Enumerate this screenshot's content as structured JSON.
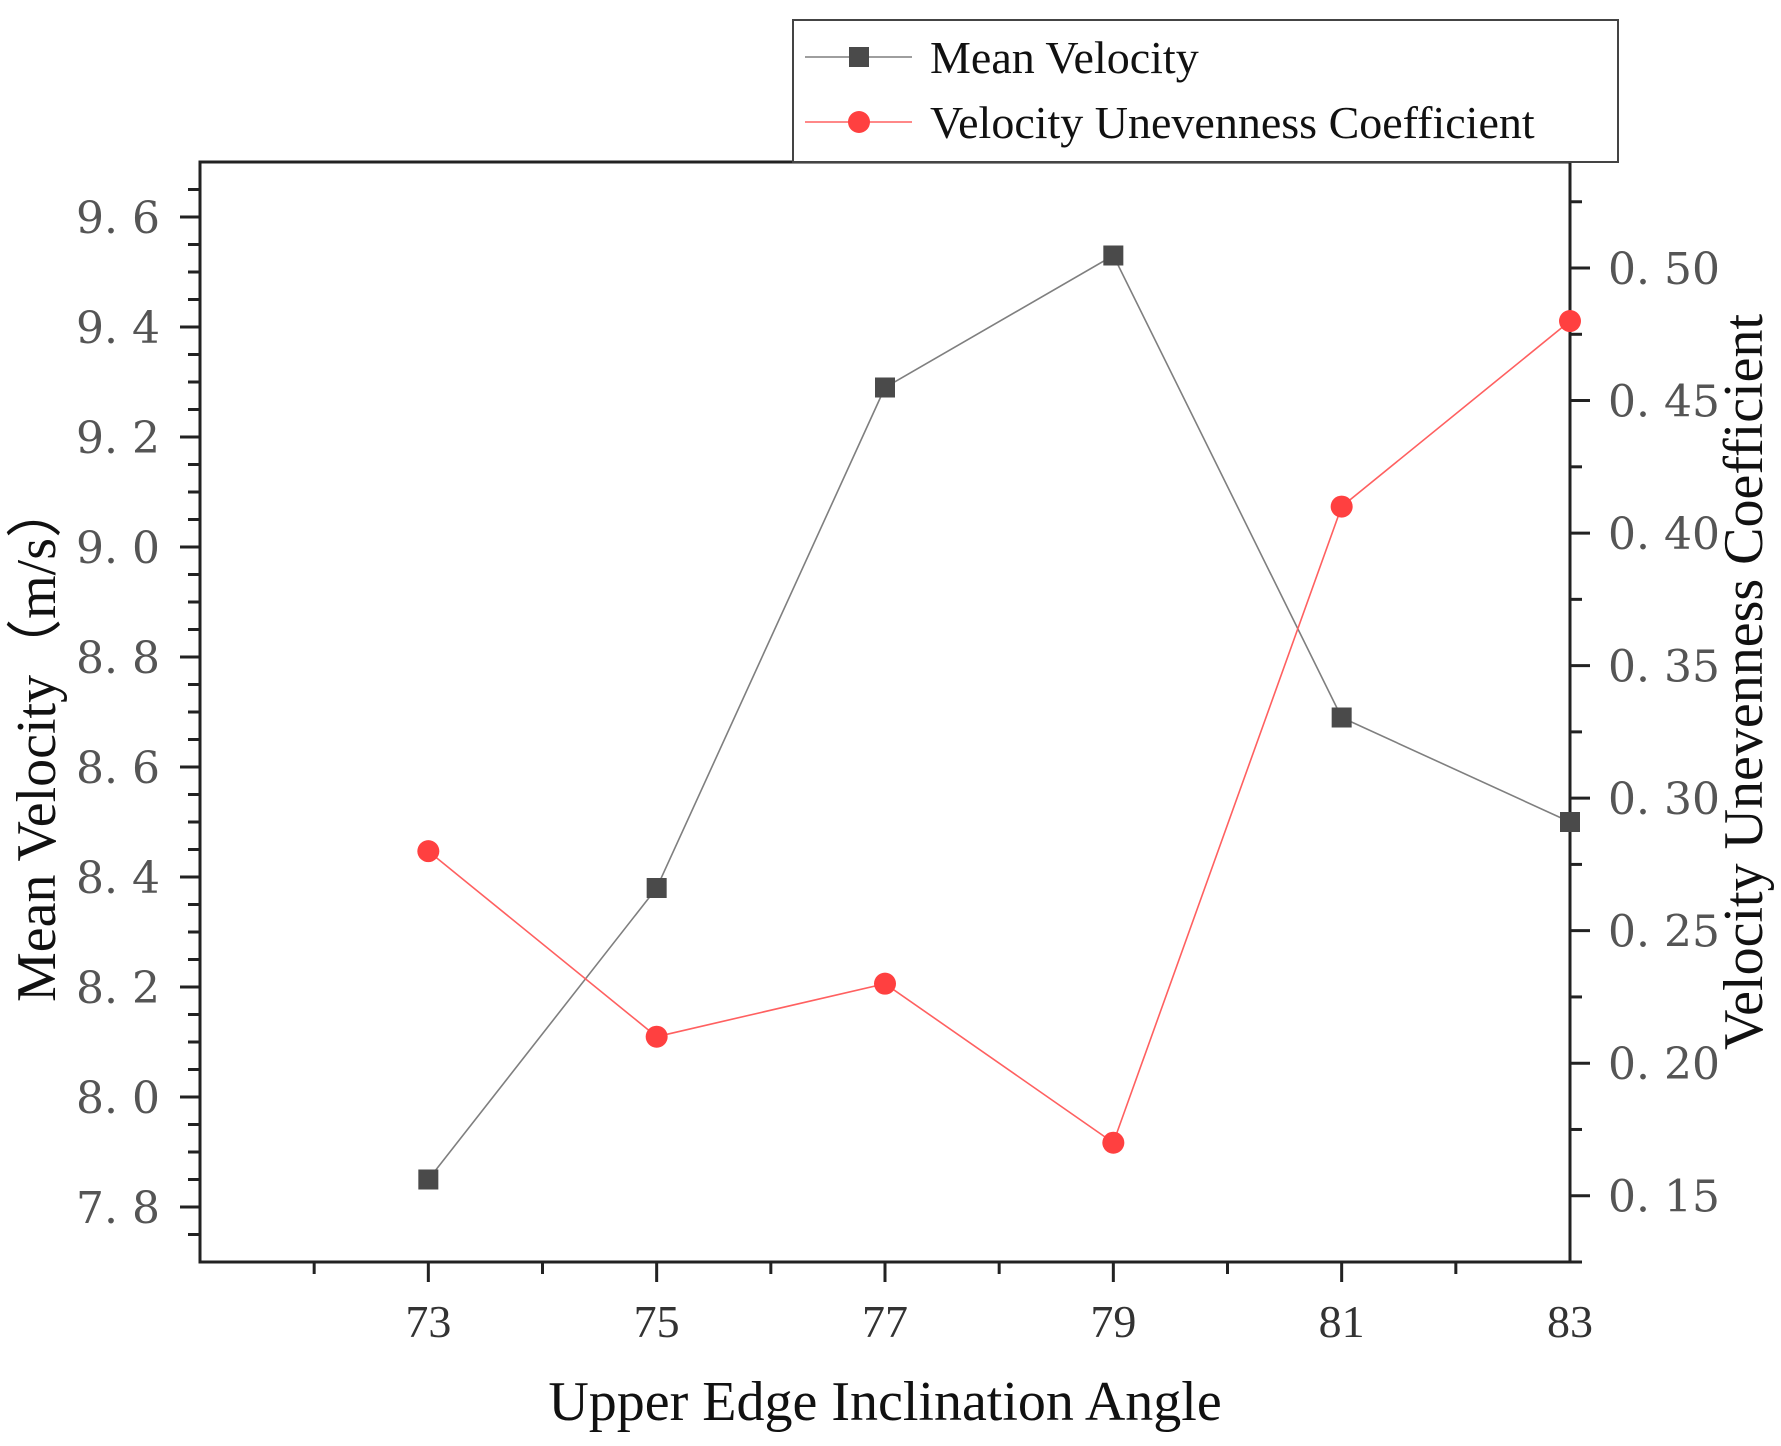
{
  "chart_data": {
    "type": "line",
    "title": "",
    "x": [
      73,
      75,
      77,
      79,
      81,
      83
    ],
    "x_tick_labels": [
      "73",
      "75",
      "77",
      "79",
      "81",
      "83"
    ],
    "xlabel": "Upper Edge Inclination Angle",
    "xlim": [
      71,
      83
    ],
    "ylabel_left": "Mean Velocity（m/s）",
    "ylim_left": [
      7.7,
      9.7
    ],
    "y_ticks_left": [
      7.8,
      8.0,
      8.2,
      8.4,
      8.6,
      8.8,
      9.0,
      9.2,
      9.4,
      9.6
    ],
    "y_tick_labels_left": [
      "7. 8",
      "8. 0",
      "8. 2",
      "8. 4",
      "8. 6",
      "8. 8",
      "9. 0",
      "9. 2",
      "9. 4",
      "9. 6"
    ],
    "ylabel_right": "Velocity  Unevenness Coefficient",
    "ylim_right": [
      0.125,
      0.54
    ],
    "y_ticks_right": [
      0.15,
      0.2,
      0.25,
      0.3,
      0.35,
      0.4,
      0.45,
      0.5
    ],
    "y_tick_labels_right": [
      "0. 15",
      "0. 20",
      "0. 25",
      "0. 30",
      "0. 35",
      "0. 40",
      "0. 45",
      "0. 50"
    ],
    "grid": false,
    "legend_position": "top-right, above plot",
    "series": [
      {
        "name": "Mean Velocity",
        "axis": "left",
        "marker": "square",
        "color": "#4a4a4a",
        "line_color": "#7f7f7f",
        "values": [
          7.85,
          8.38,
          9.29,
          9.53,
          8.69,
          8.5
        ]
      },
      {
        "name": "Velocity Unevenness Coefficient",
        "axis": "right",
        "marker": "circle",
        "color": "#ff4040",
        "line_color": "#ff6060",
        "values": [
          0.28,
          0.21,
          0.23,
          0.17,
          0.41,
          0.48
        ]
      }
    ]
  }
}
